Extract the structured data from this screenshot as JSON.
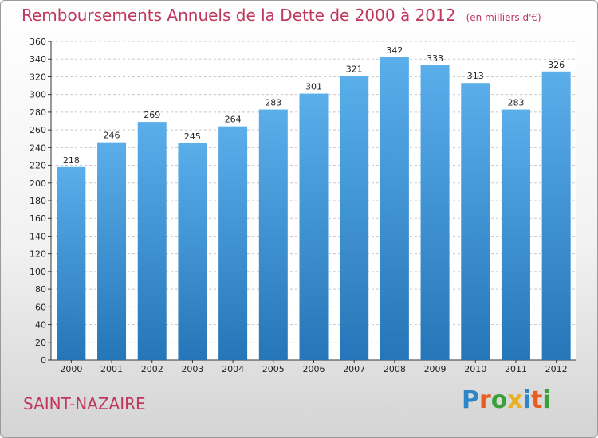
{
  "header": {
    "title": "Remboursements Annuels de la Dette de 2000 à 2012",
    "subtitle": "(en milliers d'€)"
  },
  "footer": {
    "city": "SAINT-NAZAIRE",
    "logo_text": "Proxiti",
    "logo_letters": [
      {
        "ch": "P",
        "color": "#2e86c9"
      },
      {
        "ch": "r",
        "color": "#e85c22"
      },
      {
        "ch": "o",
        "color": "#3aa13a"
      },
      {
        "ch": "x",
        "color": "#e8b020"
      },
      {
        "ch": "i",
        "color": "#2e86c9"
      },
      {
        "ch": "t",
        "color": "#e85c22"
      },
      {
        "ch": "i",
        "color": "#3aa13a"
      }
    ]
  },
  "chart_data": {
    "type": "bar",
    "title": "Remboursements Annuels de la Dette de 2000 à 2012",
    "subtitle": "(en milliers d'€)",
    "categories": [
      "2000",
      "2001",
      "2002",
      "2003",
      "2004",
      "2005",
      "2006",
      "2007",
      "2008",
      "2009",
      "2010",
      "2011",
      "2012"
    ],
    "values": [
      218,
      246,
      269,
      245,
      264,
      283,
      301,
      321,
      342,
      333,
      313,
      283,
      326
    ],
    "ylim": [
      0,
      360
    ],
    "yticks": [
      0,
      20,
      40,
      60,
      80,
      100,
      120,
      140,
      160,
      180,
      200,
      220,
      240,
      260,
      280,
      300,
      320,
      340,
      360
    ],
    "grid": true,
    "bar_color": "#3f9ee0",
    "grid_color": "#c8c8c8"
  }
}
